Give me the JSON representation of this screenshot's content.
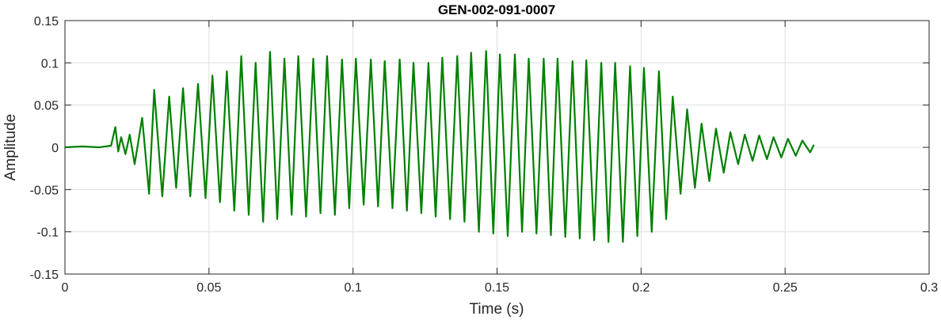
{
  "chart_data": {
    "type": "line",
    "title": "GEN-002-091-0007",
    "xlabel": "Time (s)",
    "ylabel": "Amplitude",
    "xlim": [
      0,
      0.3
    ],
    "ylim": [
      -0.15,
      0.15
    ],
    "xticks": [
      0,
      0.05,
      0.1,
      0.15,
      0.2,
      0.25,
      0.3
    ],
    "xtick_labels": [
      "0",
      "0.05",
      "0.1",
      "0.15",
      "0.2",
      "0.25",
      "0.3"
    ],
    "yticks": [
      -0.15,
      -0.1,
      -0.05,
      0,
      0.05,
      0.1,
      0.15
    ],
    "ytick_labels": [
      "-0.15",
      "-0.1",
      "-0.05",
      "0",
      "0.05",
      "0.1",
      "0.15"
    ],
    "grid": true,
    "series": [
      {
        "color": "#008000",
        "x": [
          0,
          0.006,
          0.012,
          0.016,
          0.0175,
          0.0185,
          0.0195,
          0.021,
          0.0225,
          0.0242,
          0.0268,
          0.0292,
          0.031,
          0.0338,
          0.0362,
          0.0386,
          0.041,
          0.0435,
          0.0462,
          0.0488,
          0.0512,
          0.0538,
          0.0562,
          0.0588,
          0.0612,
          0.0638,
          0.0662,
          0.0688,
          0.0712,
          0.0737,
          0.0762,
          0.0787,
          0.081,
          0.0837,
          0.0862,
          0.0887,
          0.091,
          0.0937,
          0.0962,
          0.0987,
          0.101,
          0.1037,
          0.1062,
          0.1087,
          0.111,
          0.1137,
          0.1162,
          0.1187,
          0.121,
          0.1237,
          0.1262,
          0.1287,
          0.131,
          0.1337,
          0.1362,
          0.1387,
          0.141,
          0.1437,
          0.1462,
          0.1487,
          0.151,
          0.1537,
          0.1562,
          0.1587,
          0.161,
          0.1637,
          0.1662,
          0.1687,
          0.171,
          0.1737,
          0.1762,
          0.1787,
          0.181,
          0.1837,
          0.1862,
          0.1887,
          0.191,
          0.1937,
          0.1962,
          0.1987,
          0.201,
          0.2037,
          0.2062,
          0.2087,
          0.211,
          0.2137,
          0.216,
          0.2187,
          0.221,
          0.2237,
          0.226,
          0.2287,
          0.231,
          0.2337,
          0.236,
          0.2387,
          0.241,
          0.2437,
          0.246,
          0.2487,
          0.251,
          0.2537,
          0.256,
          0.2587,
          0.26
        ],
        "y": [
          0,
          0.001,
          0,
          0.002,
          0.024,
          -0.005,
          0.012,
          -0.008,
          0.015,
          -0.02,
          0.035,
          -0.055,
          0.068,
          -0.058,
          0.06,
          -0.048,
          0.07,
          -0.058,
          0.075,
          -0.06,
          0.085,
          -0.065,
          0.09,
          -0.075,
          0.108,
          -0.08,
          0.1,
          -0.088,
          0.113,
          -0.085,
          0.105,
          -0.08,
          0.108,
          -0.082,
          0.105,
          -0.078,
          0.108,
          -0.08,
          0.104,
          -0.072,
          0.105,
          -0.068,
          0.104,
          -0.07,
          0.102,
          -0.072,
          0.104,
          -0.075,
          0.1,
          -0.078,
          0.1,
          -0.082,
          0.106,
          -0.085,
          0.108,
          -0.088,
          0.112,
          -0.1,
          0.114,
          -0.102,
          0.11,
          -0.105,
          0.11,
          -0.1,
          0.105,
          -0.102,
          0.105,
          -0.104,
          0.105,
          -0.106,
          0.102,
          -0.108,
          0.103,
          -0.11,
          0.1,
          -0.112,
          0.1,
          -0.112,
          0.096,
          -0.105,
          0.094,
          -0.1,
          0.09,
          -0.085,
          0.06,
          -0.055,
          0.045,
          -0.048,
          0.028,
          -0.04,
          0.022,
          -0.03,
          0.018,
          -0.02,
          0.015,
          -0.016,
          0.014,
          -0.014,
          0.012,
          -0.012,
          0.01,
          -0.01,
          0.008,
          -0.006,
          0.003
        ]
      }
    ]
  }
}
